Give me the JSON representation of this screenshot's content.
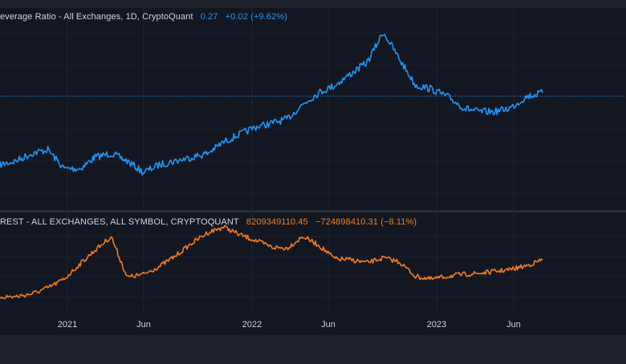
{
  "panes": [
    {
      "title": "everage Ratio - All Exchanges, 1D, CryptoQuant",
      "value": "0.27",
      "change": "+0.02 (+9.62%)",
      "color": "#2196f3"
    },
    {
      "title": "REST - ALL EXCHANGES, ALL SYMBOL, CRYPTOQUANT",
      "value": "8209349110.45",
      "change": "−724898410.31 (−8.11%)",
      "color": "#f57c1f"
    }
  ],
  "time_axis": [
    "2021",
    "Jun",
    "2022",
    "Jun",
    "2023",
    "Jun"
  ],
  "chart_data": [
    {
      "type": "line",
      "series": [
        {
          "x": [
            "2020-09-15",
            "2020-10-15",
            "2020-11-15",
            "2020-12-15",
            "2021-01-15",
            "2021-02-15",
            "2021-03-15",
            "2021-04-15",
            "2021-05-15",
            "2021-06-15",
            "2021-07-15",
            "2021-08-15",
            "2021-09-15",
            "2021-10-15",
            "2021-11-15",
            "2021-12-15",
            "2022-01-15",
            "2022-02-15",
            "2022-03-15",
            "2022-04-15",
            "2022-05-15",
            "2022-06-15",
            "2022-07-15",
            "2022-08-15",
            "2022-09-15",
            "2022-10-15",
            "2022-11-15",
            "2022-12-15",
            "2023-01-15",
            "2023-02-15",
            "2023-03-15",
            "2023-04-15",
            "2023-05-15",
            "2023-06-15",
            "2023-07-15"
          ],
          "values": [
            0.155,
            0.16,
            0.17,
            0.175,
            0.15,
            0.15,
            0.165,
            0.17,
            0.16,
            0.145,
            0.155,
            0.16,
            0.165,
            0.17,
            0.185,
            0.195,
            0.205,
            0.21,
            0.215,
            0.235,
            0.25,
            0.26,
            0.275,
            0.29,
            0.33,
            0.295,
            0.26,
            0.255,
            0.245,
            0.23,
            0.225,
            0.225,
            0.23,
            0.245,
            0.25
          ]
        }
      ]
    },
    {
      "type": "line",
      "series": [
        {
          "x": [
            "2020-09-15",
            "2020-10-15",
            "2020-11-15",
            "2020-12-15",
            "2021-01-15",
            "2021-02-15",
            "2021-03-15",
            "2021-04-15",
            "2021-05-15",
            "2021-06-15",
            "2021-07-15",
            "2021-08-15",
            "2021-09-15",
            "2021-10-15",
            "2021-11-15",
            "2021-12-15",
            "2022-01-15",
            "2022-02-15",
            "2022-03-15",
            "2022-04-15",
            "2022-05-15",
            "2022-06-15",
            "2022-07-15",
            "2022-08-15",
            "2022-09-15",
            "2022-10-15",
            "2022-11-15",
            "2022-12-15",
            "2023-01-15",
            "2023-02-15",
            "2023-03-15",
            "2023-04-15",
            "2023-05-15",
            "2023-06-15",
            "2023-07-15"
          ],
          "values": [
            2.0,
            2.0,
            2.3,
            2.9,
            3.8,
            5.4,
            6.8,
            8.2,
            4.0,
            4.3,
            5.1,
            6.2,
            7.5,
            8.6,
            9.2,
            8.4,
            7.8,
            7.1,
            7.0,
            8.2,
            7.3,
            5.9,
            5.8,
            5.5,
            6.0,
            5.6,
            4.1,
            3.8,
            4.1,
            4.3,
            4.4,
            4.6,
            4.8,
            5.2,
            5.8
          ]
        }
      ]
    }
  ]
}
